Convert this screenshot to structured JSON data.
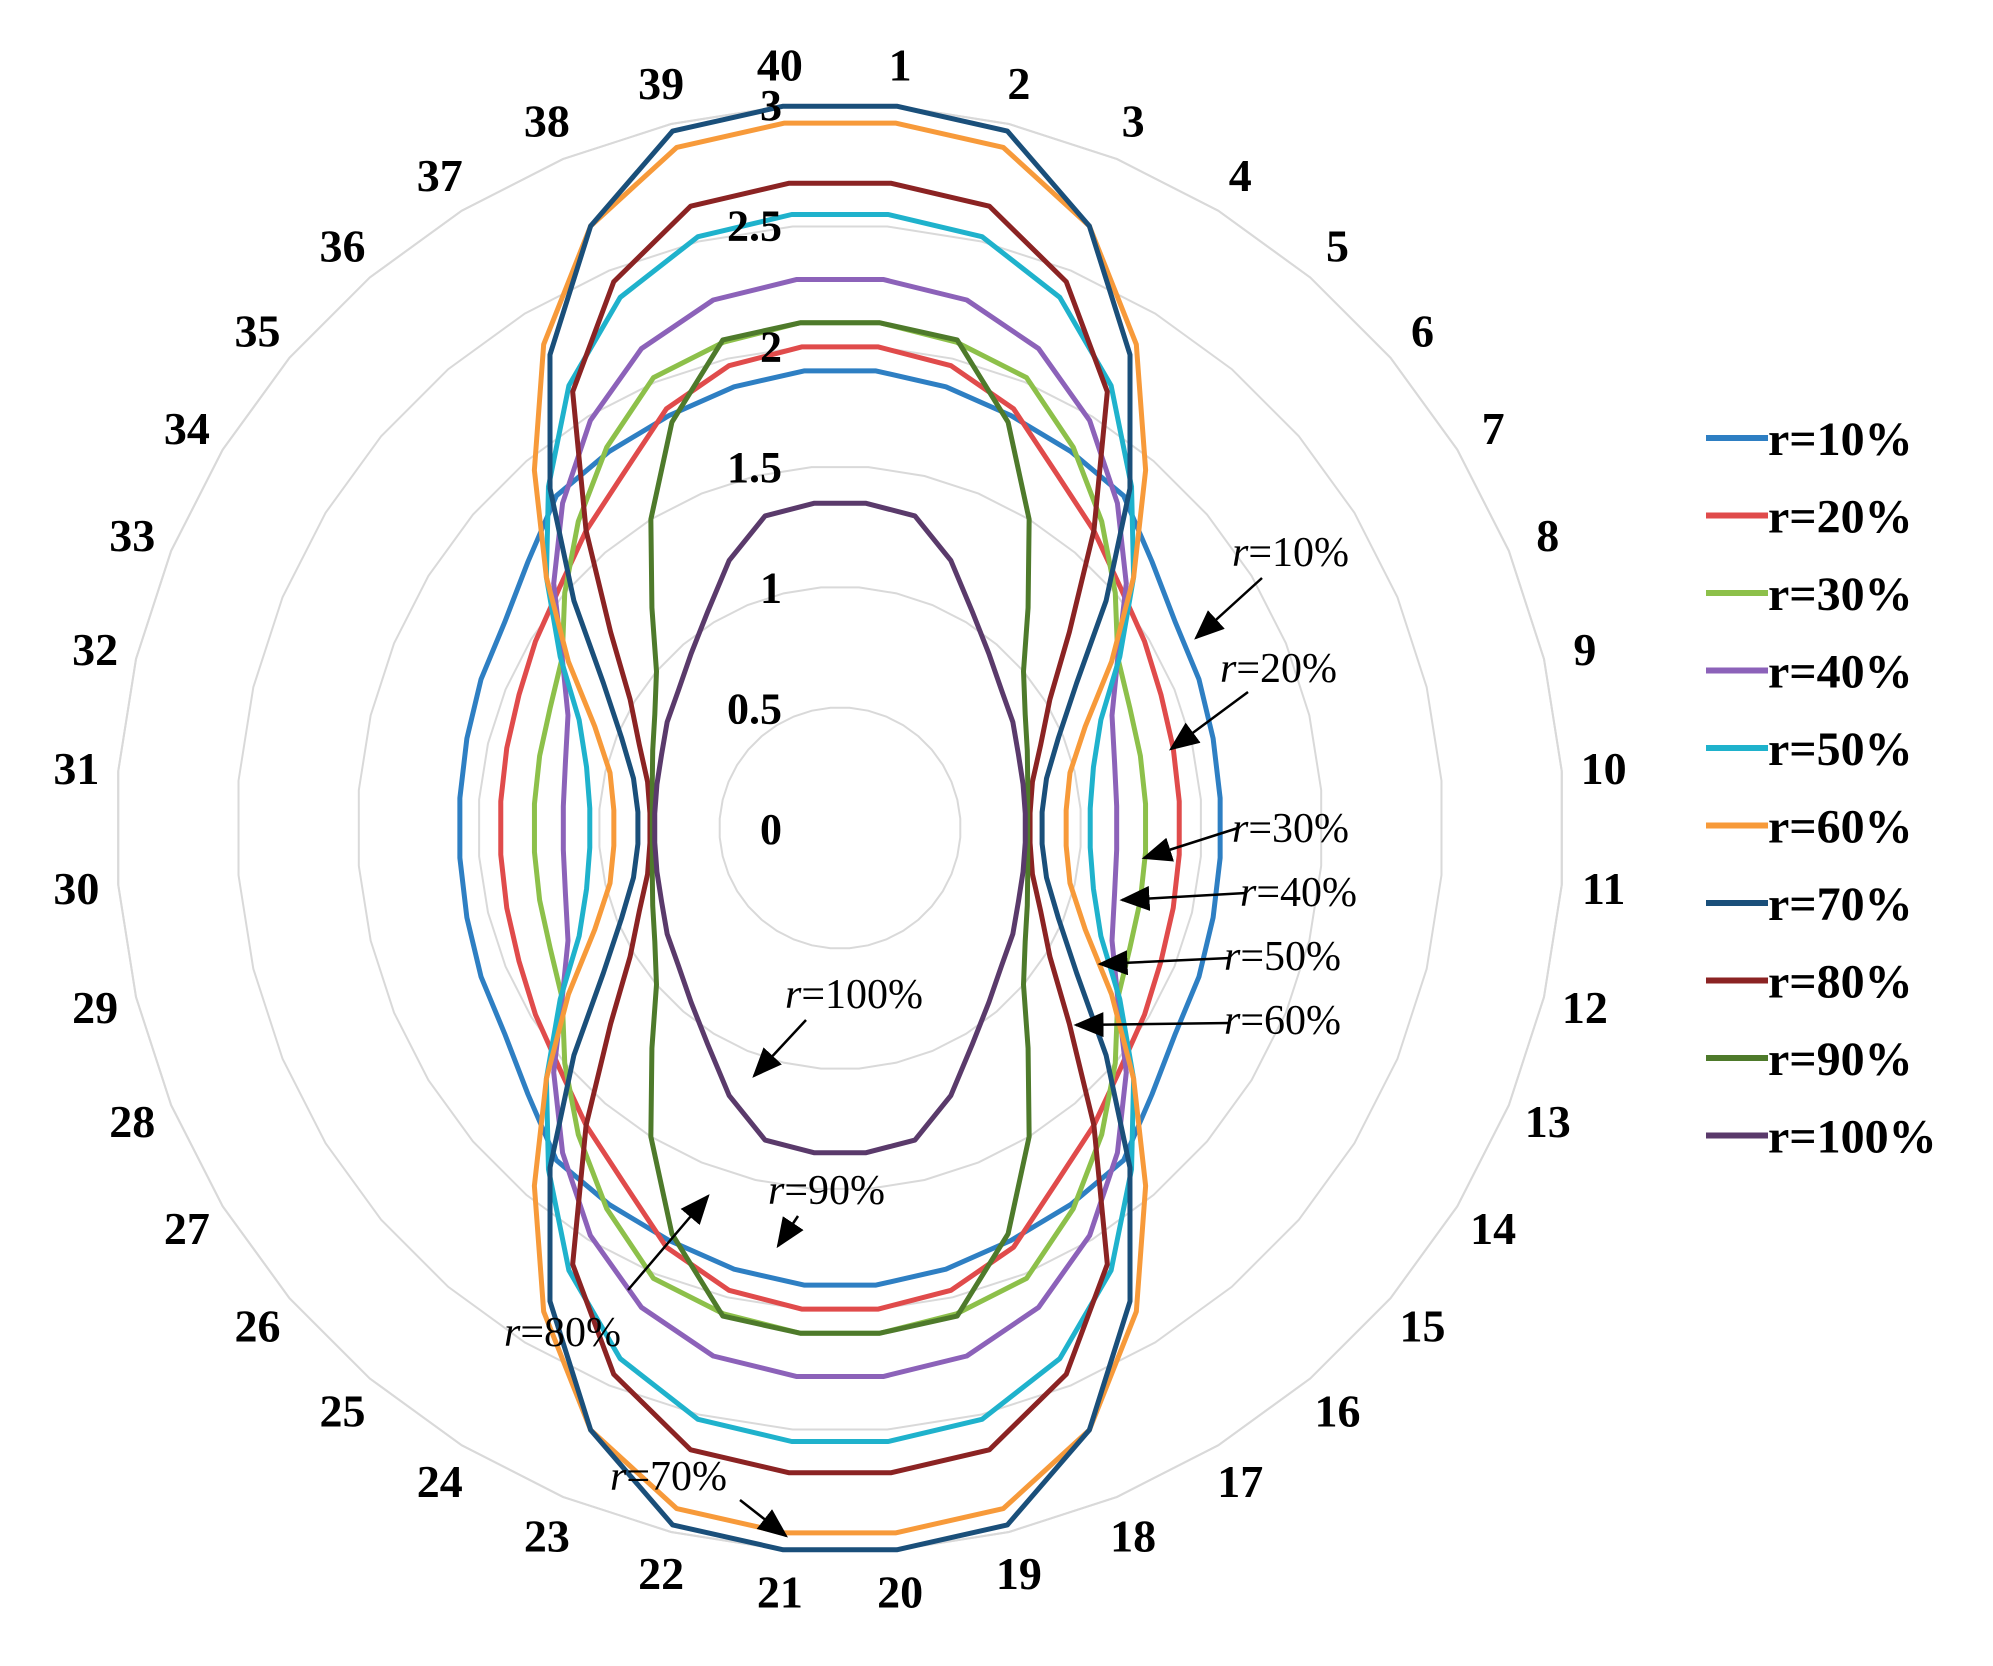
{
  "chart_data": {
    "type": "radar",
    "categories": [
      "1",
      "2",
      "3",
      "4",
      "5",
      "6",
      "7",
      "8",
      "9",
      "10",
      "11",
      "12",
      "13",
      "14",
      "15",
      "16",
      "17",
      "18",
      "19",
      "20",
      "21",
      "22",
      "23",
      "24",
      "25",
      "26",
      "27",
      "28",
      "29",
      "30",
      "31",
      "32",
      "33",
      "34",
      "35",
      "36",
      "37",
      "38",
      "39",
      "40"
    ],
    "rlim": [
      0,
      3
    ],
    "ticks": [
      "0",
      "0.5",
      "1",
      "1.5",
      "2",
      "2.5",
      "3"
    ],
    "tick_values": [
      0,
      0.5,
      1,
      1.5,
      2,
      2.5,
      3
    ],
    "grid": true,
    "legend_position": "right",
    "series": [
      {
        "name": "r=10%",
        "color": "#2e7fc3",
        "values": [
          1.9,
          1.88,
          1.85,
          1.83,
          1.81,
          1.7,
          1.63,
          1.61,
          1.59,
          1.58,
          1.58,
          1.59,
          1.61,
          1.63,
          1.7,
          1.81,
          1.83,
          1.85,
          1.88,
          1.9,
          1.9,
          1.88,
          1.85,
          1.83,
          1.81,
          1.7,
          1.63,
          1.61,
          1.59,
          1.58,
          1.58,
          1.59,
          1.61,
          1.63,
          1.7,
          1.81,
          1.83,
          1.85,
          1.88,
          1.9
        ]
      },
      {
        "name": "r=20%",
        "color": "#e04b4b",
        "values": [
          2.0,
          1.97,
          1.88,
          1.72,
          1.62,
          1.53,
          1.48,
          1.44,
          1.42,
          1.41,
          1.41,
          1.42,
          1.44,
          1.48,
          1.53,
          1.62,
          1.72,
          1.88,
          1.97,
          2.0,
          2.0,
          1.97,
          1.88,
          1.72,
          1.62,
          1.53,
          1.48,
          1.44,
          1.42,
          1.41,
          1.41,
          1.42,
          1.44,
          1.48,
          1.53,
          1.62,
          1.72,
          1.88,
          1.97,
          2.0
        ]
      },
      {
        "name": "r=30%",
        "color": "#8dc04a",
        "values": [
          2.1,
          2.07,
          2.02,
          1.85,
          1.67,
          1.5,
          1.35,
          1.3,
          1.28,
          1.27,
          1.27,
          1.28,
          1.3,
          1.35,
          1.5,
          1.67,
          1.85,
          2.02,
          2.07,
          2.1,
          2.1,
          2.07,
          2.02,
          1.85,
          1.67,
          1.5,
          1.35,
          1.3,
          1.28,
          1.27,
          1.27,
          1.28,
          1.3,
          1.35,
          1.5,
          1.67,
          1.85,
          2.02,
          2.07,
          2.1
        ]
      },
      {
        "name": "r=40%",
        "color": "#8c62b9",
        "values": [
          2.28,
          2.25,
          2.15,
          1.98,
          1.77,
          1.56,
          1.35,
          1.22,
          1.17,
          1.15,
          1.15,
          1.17,
          1.22,
          1.35,
          1.56,
          1.77,
          1.98,
          2.15,
          2.25,
          2.28,
          2.28,
          2.25,
          2.15,
          1.98,
          1.77,
          1.56,
          1.35,
          1.22,
          1.17,
          1.15,
          1.15,
          1.17,
          1.22,
          1.35,
          1.56,
          1.77,
          1.98,
          2.15,
          2.25,
          2.28
        ]
      },
      {
        "name": "r=50%",
        "color": "#1fb2cc",
        "values": [
          2.55,
          2.52,
          2.38,
          2.15,
          1.86,
          1.6,
          1.36,
          1.17,
          1.08,
          1.04,
          1.04,
          1.08,
          1.17,
          1.36,
          1.6,
          1.86,
          2.15,
          2.38,
          2.52,
          2.55,
          2.55,
          2.52,
          2.38,
          2.15,
          1.86,
          1.6,
          1.36,
          1.17,
          1.08,
          1.04,
          1.04,
          1.08,
          1.17,
          1.36,
          1.6,
          1.86,
          2.15,
          2.38,
          2.52,
          2.55
        ]
      },
      {
        "name": "r=60%",
        "color": "#f79a3a",
        "values": [
          2.93,
          2.9,
          2.7,
          2.35,
          1.95,
          1.6,
          1.32,
          1.1,
          0.98,
          0.94,
          0.94,
          0.98,
          1.1,
          1.32,
          1.6,
          1.95,
          2.35,
          2.7,
          2.9,
          2.93,
          2.93,
          2.9,
          2.7,
          2.35,
          1.95,
          1.6,
          1.32,
          1.1,
          0.98,
          0.94,
          0.94,
          0.98,
          1.1,
          1.32,
          1.6,
          1.95,
          2.35,
          2.7,
          2.9,
          2.93
        ]
      },
      {
        "name": "r=70%",
        "color": "#1a4f7a",
        "values": [
          3.0,
          2.97,
          2.7,
          2.3,
          1.85,
          1.45,
          1.15,
          0.98,
          0.88,
          0.84,
          0.84,
          0.88,
          0.98,
          1.15,
          1.45,
          1.85,
          2.3,
          2.7,
          2.97,
          3.0,
          3.0,
          2.97,
          2.7,
          2.3,
          1.85,
          1.45,
          1.15,
          0.98,
          0.88,
          0.84,
          0.84,
          0.88,
          0.98,
          1.15,
          1.45,
          1.85,
          2.3,
          2.7,
          2.97,
          3.0
        ]
      },
      {
        "name": "r=80%",
        "color": "#8b2323",
        "values": [
          2.68,
          2.65,
          2.45,
          2.12,
          1.62,
          1.25,
          1.02,
          0.9,
          0.82,
          0.79,
          0.79,
          0.82,
          0.9,
          1.02,
          1.25,
          1.62,
          2.12,
          2.45,
          2.65,
          2.68,
          2.68,
          2.65,
          2.45,
          2.12,
          1.62,
          1.25,
          1.02,
          0.9,
          0.82,
          0.79,
          0.79,
          0.82,
          0.9,
          1.02,
          1.25,
          1.62,
          2.12,
          2.45,
          2.65,
          2.68
        ]
      },
      {
        "name": "r=90%",
        "color": "#4e7a2b",
        "values": [
          2.1,
          2.08,
          1.82,
          1.5,
          1.2,
          1.0,
          0.9,
          0.84,
          0.8,
          0.78,
          0.78,
          0.8,
          0.84,
          0.9,
          1.0,
          1.2,
          1.5,
          1.82,
          2.08,
          2.1,
          2.1,
          2.08,
          1.82,
          1.5,
          1.2,
          1.0,
          0.9,
          0.84,
          0.8,
          0.78,
          0.78,
          0.8,
          0.84,
          0.9,
          1.0,
          1.2,
          1.5,
          1.82,
          2.08,
          2.1
        ]
      },
      {
        "name": "r=100%",
        "color": "#5a3a6b",
        "values": [
          1.35,
          1.33,
          1.2,
          1.05,
          0.95,
          0.88,
          0.84,
          0.8,
          0.78,
          0.77,
          0.77,
          0.78,
          0.8,
          0.84,
          0.88,
          0.95,
          1.05,
          1.2,
          1.33,
          1.35,
          1.35,
          1.33,
          1.2,
          1.05,
          0.95,
          0.88,
          0.84,
          0.8,
          0.78,
          0.77,
          0.77,
          0.78,
          0.8,
          0.84,
          0.88,
          0.95,
          1.05,
          1.2,
          1.33,
          1.35
        ]
      }
    ],
    "annotations": [
      {
        "r": "r",
        "text": "=10%",
        "series": "r=10%"
      },
      {
        "r": "r",
        "text": "=20%",
        "series": "r=20%"
      },
      {
        "r": "r",
        "text": "=30%",
        "series": "r=30%"
      },
      {
        "r": "r",
        "text": "=40%",
        "series": "r=40%"
      },
      {
        "r": "r",
        "text": "=50%",
        "series": "r=50%"
      },
      {
        "r": "r",
        "text": "=60%",
        "series": "r=60%"
      },
      {
        "r": "r",
        "text": "=100%",
        "series": "r=100%"
      },
      {
        "r": "r",
        "text": "=90%",
        "series": "r=90%"
      },
      {
        "r": "r",
        "text": "=80%",
        "series": "r=80%"
      },
      {
        "r": "r",
        "text": "=70%",
        "series": "r=70%"
      }
    ]
  }
}
